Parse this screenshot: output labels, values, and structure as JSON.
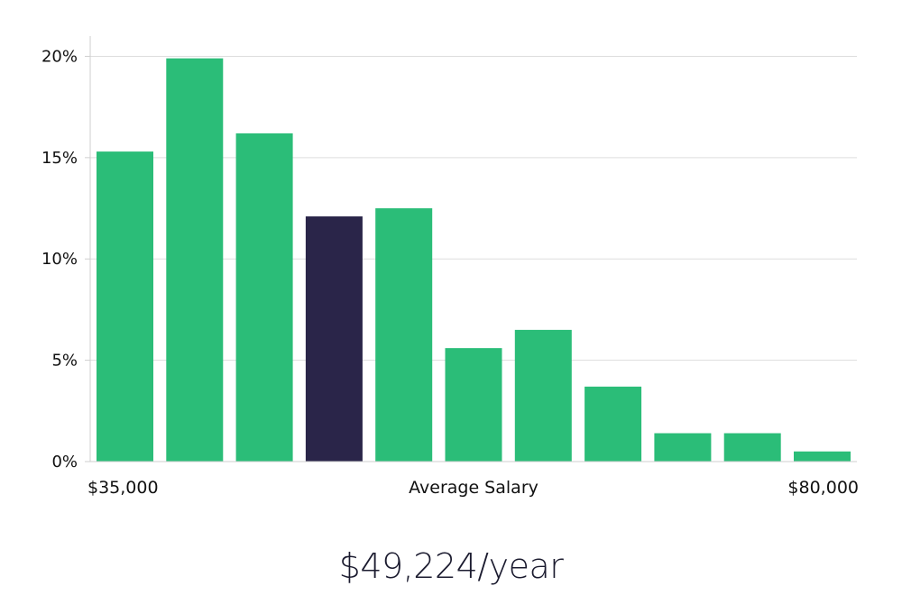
{
  "chart_data": {
    "type": "bar",
    "categories": [
      "",
      "",
      "",
      "",
      "",
      "",
      "",
      "",
      "",
      "",
      ""
    ],
    "values": [
      15.3,
      19.9,
      16.2,
      12.1,
      12.5,
      5.6,
      6.5,
      3.7,
      1.4,
      1.4,
      0.5
    ],
    "highlight_index": 3,
    "ylim": [
      0,
      21
    ],
    "yticks": [
      0,
      5,
      10,
      15,
      20
    ],
    "ytick_labels": [
      "0%",
      "5%",
      "10%",
      "15%",
      "20%"
    ],
    "x_start_label": "$35,000",
    "x_center_label": "Average Salary",
    "x_end_label": "$80,000",
    "grid": true,
    "legend": "none",
    "colors": {
      "bar": "#2bbd78",
      "bar_highlight": "#2a2549",
      "grid": "#dddddd",
      "axis": "#cfcfcf",
      "text": "#111111"
    }
  },
  "summary": {
    "salary": "$49,224/year"
  }
}
